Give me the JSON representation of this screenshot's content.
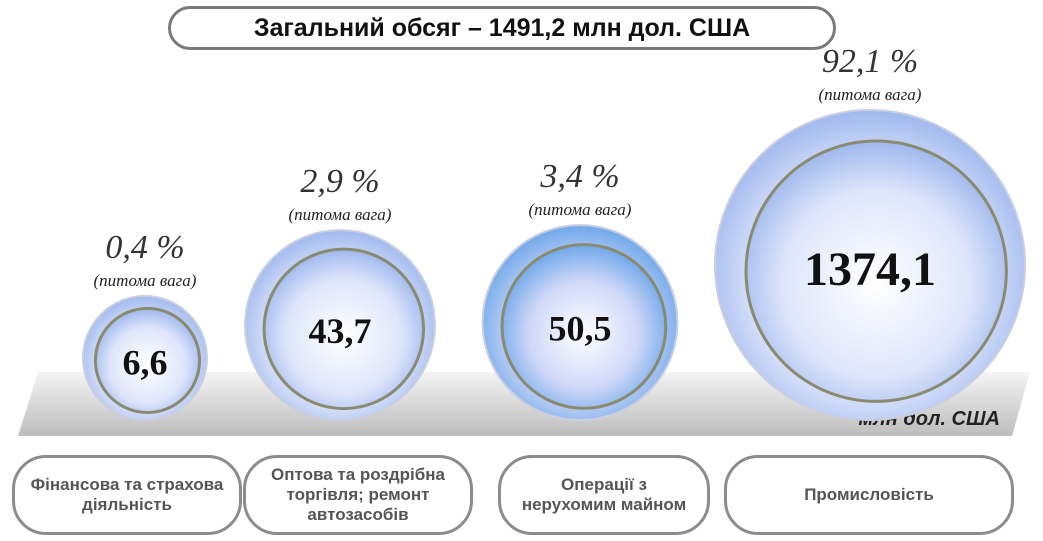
{
  "chart_data": {
    "type": "bubble",
    "title": "Загальний обсяг – 1491,2 млн дол. США",
    "unit": "млн дол. США",
    "categories": [
      "Фінансова та страхова діяльність",
      "Оптова та роздрібна торгівля; ремонт автозасобів",
      "Операції з нерухомим майном",
      "Промисловість"
    ],
    "values": [
      6.6,
      43.7,
      50.5,
      1374.1
    ],
    "value_labels": [
      "6,6",
      "43,7",
      "50,5",
      "1374,1"
    ],
    "shares": [
      0.4,
      2.9,
      3.4,
      92.1
    ],
    "share_labels": [
      "0,4 %",
      "2,9 %",
      "3,4 %",
      "92,1 %"
    ],
    "share_note": "(питома вага)"
  }
}
